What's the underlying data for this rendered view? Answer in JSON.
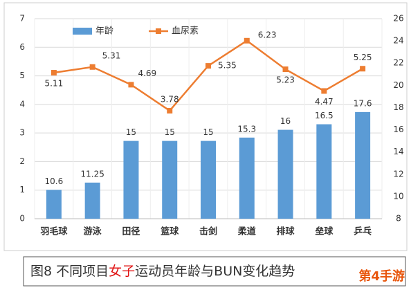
{
  "chart_data": {
    "type": "bar_line",
    "categories": [
      "羽毛球",
      "游泳",
      "田径",
      "篮球",
      "击剑",
      "柔道",
      "排球",
      "垒球",
      "乒乓"
    ],
    "series": [
      {
        "name": "年龄",
        "type": "bar",
        "color": "#5b9bd5",
        "axis": "y2",
        "values": [
          10.6,
          11.25,
          15,
          15,
          15,
          15.3,
          16,
          16.5,
          17.6
        ]
      },
      {
        "name": "血尿素",
        "type": "line",
        "color": "#ed7d31",
        "values": [
          5.11,
          5.31,
          4.69,
          3.78,
          5.35,
          6.23,
          5.23,
          4.47,
          5.25
        ]
      }
    ],
    "ylim": [
      0,
      7
    ],
    "yticks": [
      0,
      1,
      2,
      3,
      4,
      5,
      6,
      7
    ],
    "y2lim": [
      8,
      26
    ],
    "y2ticks": [
      8,
      10,
      12,
      14,
      16,
      18,
      20,
      22,
      24,
      26
    ],
    "grid": true,
    "caption": {
      "prefix": "图8  不同项目",
      "highlight": "女子",
      "suffix": "运动员年龄与BUN变化趋势"
    },
    "watermark": "第4手游"
  }
}
